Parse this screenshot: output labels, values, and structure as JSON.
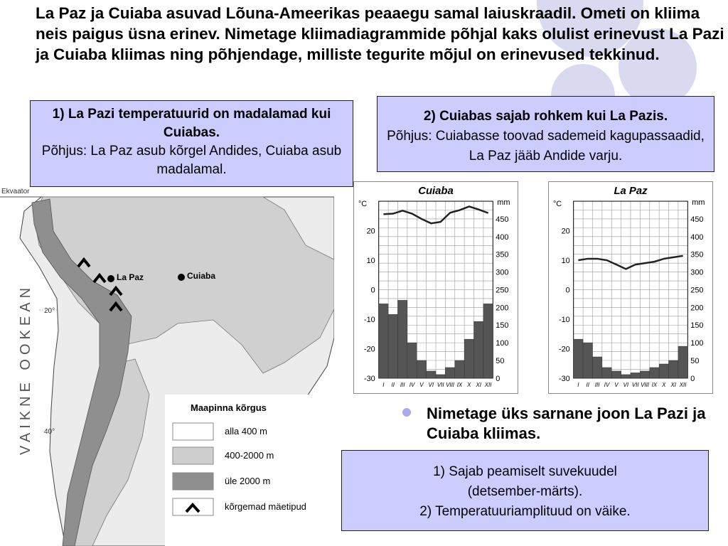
{
  "title": "La Paz ja Cuiaba asuvad Lõuna-Ameerikas peaaegu samal laiuskraadil. Ometi on kliima neis paigus üsna erinev. Nimetage kliimadiagrammide põhjal kaks olulist erinevust La Pazi ja Cuiaba kliimas ning põhjendage, milliste tegurite mõjul on erinevused tekkinud.",
  "box1": {
    "heading": "1)  La Pazi temperatuurid on madalamad kui Cuiabas.",
    "reason": "Põhjus: La Paz asub kõrgel Andides, Cuiaba asub madalamal."
  },
  "box2": {
    "heading": "2) Cuiabas sajab rohkem kui La Pazis.",
    "reason": "Põhjus: Cuiabasse toovad sademeid kagupassaadid, La Paz jääb Andide varju."
  },
  "bullet": "Nimetage üks sarnane joon La Pazi ja Cuiaba kliimas.",
  "box3": {
    "line1": "1)  Sajab peamiselt suvekuudel",
    "line2": "(detsember-märts).",
    "line3": "2) Temperatuuriamplituud on väike."
  },
  "map": {
    "equator_label": "Ekvaator",
    "lat20": "20°",
    "lat40": "40°",
    "ocean_label": "VAIKNE  OOKEAN",
    "city_lapaz": "La Paz",
    "city_cuiaba": "Cuiaba",
    "legend_title": "Maapinna kõrgus",
    "legend": [
      {
        "label": "alla 400 m",
        "color": "#ffffff"
      },
      {
        "label": "400-2000 m",
        "color": "#cfcfcf"
      },
      {
        "label": "üle 2000 m",
        "color": "#8f8f8f"
      },
      {
        "label": "kõrgemad mäetipud",
        "color": "#000000"
      }
    ]
  },
  "chart_data": [
    {
      "type": "bar+line",
      "title": "Cuiaba",
      "x": [
        "I",
        "II",
        "III",
        "IV",
        "V",
        "VI",
        "VII",
        "VIII",
        "IX",
        "X",
        "XI",
        "XII"
      ],
      "left_axis_label": "°C",
      "right_axis_label": "mm",
      "left_ticks": [
        20,
        10,
        0,
        -10,
        -20,
        -30
      ],
      "right_ticks": [
        450,
        400,
        350,
        300,
        250,
        200,
        150,
        100,
        50,
        0
      ],
      "left_range": [
        -30,
        30
      ],
      "right_range": [
        0,
        500
      ],
      "series": [
        {
          "name": "temperature",
          "kind": "line",
          "values": [
            25.6,
            25.8,
            26.8,
            25.8,
            24,
            22.5,
            23,
            26.1,
            27,
            28.2,
            27.2,
            26
          ]
        },
        {
          "name": "precipitation",
          "kind": "bar",
          "values": [
            210,
            180,
            220,
            100,
            50,
            20,
            10,
            30,
            50,
            110,
            160,
            210
          ]
        }
      ]
    },
    {
      "type": "bar+line",
      "title": "La Paz",
      "x": [
        "I",
        "II",
        "III",
        "IV",
        "V",
        "VI",
        "VII",
        "VIII",
        "IX",
        "X",
        "XI",
        "XII"
      ],
      "left_axis_label": "°C",
      "right_axis_label": "mm",
      "left_ticks": [
        20,
        10,
        0,
        -10,
        -20,
        -30
      ],
      "right_ticks": [
        450,
        400,
        350,
        300,
        250,
        200,
        150,
        100,
        50,
        0
      ],
      "left_range": [
        -30,
        30
      ],
      "right_range": [
        0,
        500
      ],
      "series": [
        {
          "name": "temperature",
          "kind": "line",
          "values": [
            10,
            10.5,
            10.5,
            10,
            8.5,
            7,
            8.5,
            9,
            9.5,
            10.5,
            11,
            11.5
          ]
        },
        {
          "name": "precipitation",
          "kind": "bar",
          "values": [
            110,
            100,
            60,
            30,
            20,
            10,
            15,
            20,
            30,
            40,
            50,
            90
          ]
        }
      ]
    }
  ]
}
